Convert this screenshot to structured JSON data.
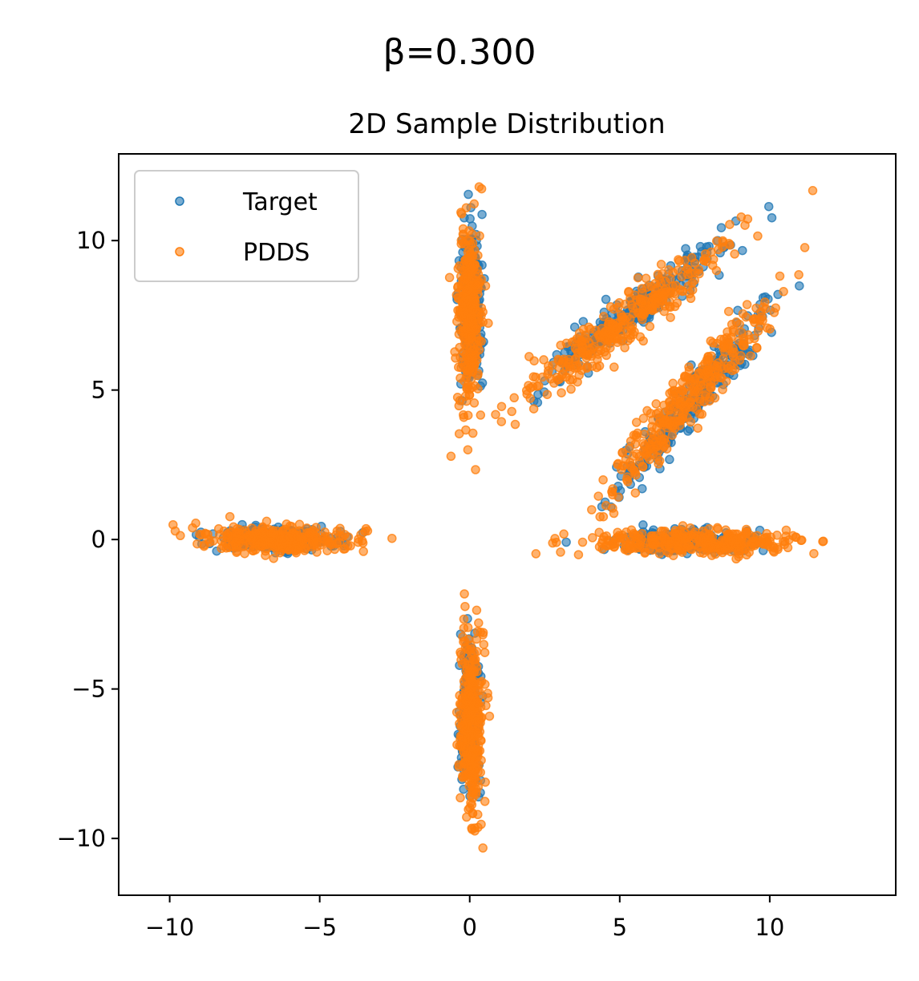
{
  "figure": {
    "suptitle": "β=0.300"
  },
  "chart_data": {
    "type": "scatter",
    "title": "2D Sample Distribution",
    "xlabel": "",
    "ylabel": "",
    "xlim": [
      -11.7,
      14.2
    ],
    "ylim": [
      -11.9,
      12.9
    ],
    "xticks": [
      -10,
      -5,
      0,
      5,
      10
    ],
    "yticks": [
      -10,
      -5,
      0,
      5,
      10
    ],
    "xtick_labels": [
      "−10",
      "−5",
      "0",
      "5",
      "10"
    ],
    "ytick_labels": [
      "−10",
      "−5",
      "0",
      "5",
      "10"
    ],
    "grid": false,
    "legend": {
      "position": "top-left",
      "entries": [
        "Target",
        "PDDS"
      ]
    },
    "series": [
      {
        "name": "Target",
        "color": "#1f77b4",
        "alpha": 0.6,
        "clusters": [
          {
            "center": [
              -6.5,
              0.0
            ],
            "spread_major": 1.0,
            "spread_minor": 0.18,
            "angle_deg": 0,
            "count": 260
          },
          {
            "center": [
              0.05,
              7.9
            ],
            "spread_major": 1.25,
            "spread_minor": 0.18,
            "angle_deg": 90,
            "count": 260
          },
          {
            "center": [
              0.0,
              -6.0
            ],
            "spread_major": 1.15,
            "spread_minor": 0.15,
            "angle_deg": 90,
            "count": 260
          },
          {
            "center": [
              5.4,
              7.6
            ],
            "spread_major": 1.8,
            "spread_minor": 0.28,
            "angle_deg": 38,
            "count": 260
          },
          {
            "center": [
              7.4,
              4.6
            ],
            "spread_major": 2.0,
            "spread_minor": 0.28,
            "angle_deg": 51,
            "count": 260
          },
          {
            "center": [
              7.5,
              -0.1
            ],
            "spread_major": 1.1,
            "spread_minor": 0.18,
            "angle_deg": 0,
            "count": 260
          }
        ]
      },
      {
        "name": "PDDS",
        "color": "#ff7f0e",
        "alpha": 0.6,
        "clusters": [
          {
            "center": [
              -6.5,
              0.0
            ],
            "spread_major": 1.25,
            "spread_minor": 0.22,
            "angle_deg": 0,
            "count": 320
          },
          {
            "center": [
              0.0,
              7.7
            ],
            "spread_major": 1.55,
            "spread_minor": 0.2,
            "angle_deg": 90,
            "count": 320
          },
          {
            "center": [
              0.05,
              -6.1
            ],
            "spread_major": 1.55,
            "spread_minor": 0.2,
            "angle_deg": 90,
            "count": 320
          },
          {
            "center": [
              5.3,
              7.4
            ],
            "spread_major": 2.2,
            "spread_minor": 0.32,
            "angle_deg": 38,
            "count": 320
          },
          {
            "center": [
              7.2,
              4.6
            ],
            "spread_major": 2.3,
            "spread_minor": 0.32,
            "angle_deg": 51,
            "count": 320
          },
          {
            "center": [
              7.6,
              -0.1
            ],
            "spread_major": 1.8,
            "spread_minor": 0.22,
            "angle_deg": 0,
            "count": 320
          }
        ]
      }
    ]
  }
}
